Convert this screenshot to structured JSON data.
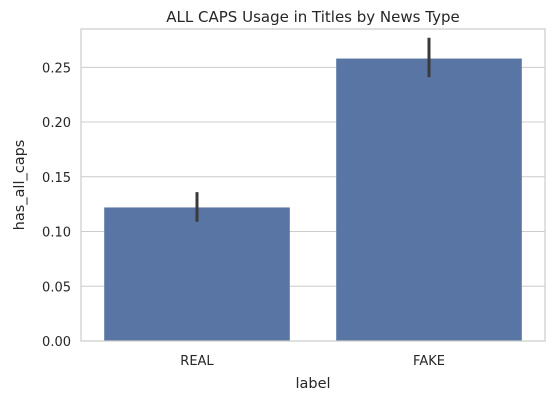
{
  "chart_data": {
    "type": "bar",
    "title": "ALL CAPS Usage in Titles by News Type",
    "xlabel": "label",
    "ylabel": "has_all_caps",
    "categories": [
      "REAL",
      "FAKE"
    ],
    "values": [
      0.122,
      0.258
    ],
    "error_bars": [
      [
        0.109,
        0.136
      ],
      [
        0.241,
        0.277
      ]
    ],
    "ylim": [
      0,
      0.285
    ],
    "yticks": [
      0.0,
      0.05,
      0.1,
      0.15,
      0.2,
      0.25
    ],
    "ytick_labels": [
      "0.00",
      "0.05",
      "0.10",
      "0.15",
      "0.20",
      "0.25"
    ],
    "grid": "horizontal",
    "bar_color": "#5975a4",
    "error_color": "#3a3a3a"
  }
}
